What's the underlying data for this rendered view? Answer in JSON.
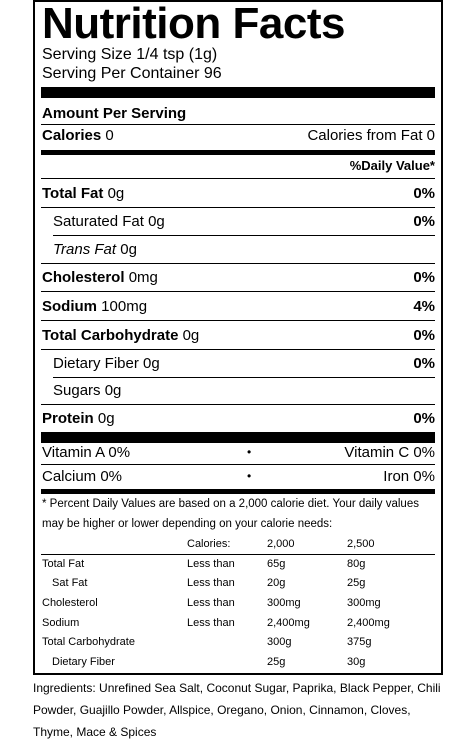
{
  "title": "Nutrition Facts",
  "serving_size": "Serving Size 1/4 tsp (1g)",
  "servings_per_container": "Serving Per Container 96",
  "amount_per_serving": "Amount Per Serving",
  "calories": {
    "label": "Calories",
    "value": "0",
    "from_fat": "Calories from Fat 0"
  },
  "daily_value_header": "%Daily Value*",
  "nutrients": [
    {
      "label": "Total Fat",
      "amount": "0g",
      "dv": "0%",
      "bold": true
    },
    {
      "label": "Saturated Fat",
      "amount": "0g",
      "dv": "0%",
      "bold": false
    },
    {
      "label": "Trans Fat",
      "amount": "0g",
      "dv": "",
      "bold": false
    },
    {
      "label": "Cholesterol",
      "amount": "0mg",
      "dv": "0%",
      "bold": true
    },
    {
      "label": "Sodium",
      "amount": "100mg",
      "dv": "4%",
      "bold": true
    },
    {
      "label": "Total Carbohydrate",
      "amount": "0g",
      "dv": "0%",
      "bold": true
    },
    {
      "label": "Dietary Fiber",
      "amount": "0g",
      "dv": "0%",
      "bold": false
    },
    {
      "label": "Sugars",
      "amount": "0g",
      "dv": "",
      "bold": false
    },
    {
      "label": "Protein",
      "amount": "0g",
      "dv": "0%",
      "bold": true
    }
  ],
  "vitamins": {
    "vitamin_a": "Vitamin A 0%",
    "vitamin_c": "Vitamin C 0%",
    "calcium": "Calcium 0%",
    "iron": "Iron 0%",
    "bullet": "•"
  },
  "footnote": "* Percent Daily Values are based on a 2,000 calorie diet. Your daily values may be higher or lower depending on your calorie needs:",
  "reference_table": {
    "header": [
      "",
      "Calories:",
      "2,000",
      "2,500"
    ],
    "rows": [
      [
        "Total Fat",
        "Less than",
        "65g",
        "80g"
      ],
      [
        "Sat Fat",
        "Less than",
        "20g",
        "25g"
      ],
      [
        "Cholesterol",
        "Less than",
        "300mg",
        "300mg"
      ],
      [
        "Sodium",
        "Less than",
        "2,400mg",
        "2,400mg"
      ],
      [
        "Total Carbohydrate",
        "",
        "300g",
        "375g"
      ],
      [
        "Dietary Fiber",
        "",
        "25g",
        "30g"
      ]
    ]
  },
  "ingredients": "Ingredients: Unrefined Sea Salt, Coconut Sugar, Paprika, Black Pepper, Chili Powder, Guajillo Powder, Allspice, Oregano, Onion, Cinnamon, Cloves, Thyme, Mace & Spices"
}
